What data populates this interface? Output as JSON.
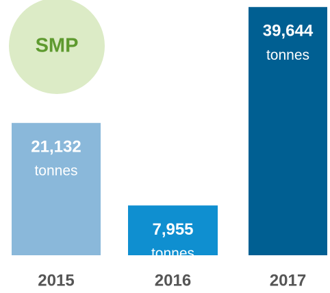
{
  "chart_data": {
    "type": "bar",
    "title": "SMP",
    "unit": "tonnes",
    "categories": [
      "2015",
      "2016",
      "2017"
    ],
    "values": [
      21132,
      7955,
      39644
    ],
    "value_labels": [
      "21,132",
      "7,955",
      "39,644"
    ],
    "colors": [
      "#8ab8da",
      "#0f8fd0",
      "#005f92"
    ],
    "ylim": [
      0,
      40000
    ]
  }
}
